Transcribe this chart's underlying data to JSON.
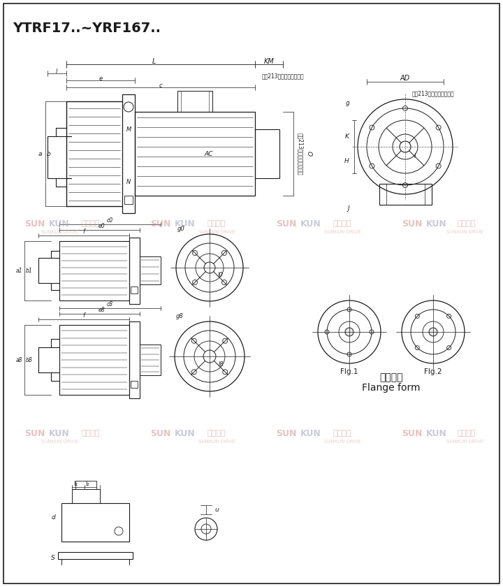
{
  "title": "YTRF17..~YRF167..",
  "bg_color": "#ffffff",
  "line_color": "#000000",
  "ref_text_motor": "见第213页附录电机尺寸表",
  "fig1_label": "Flg.1",
  "fig2_label": "Flg.2",
  "flange_label_cn": "法兰型式",
  "flange_label_en": "Flange form",
  "wm_texts": [
    "SUN",
    "KUN",
    "上坤传动",
    "SUNKUN DRIVE"
  ],
  "wm_color1": "#d4908a",
  "wm_color2": "#a0a0c0",
  "wm_alpha": 0.55
}
